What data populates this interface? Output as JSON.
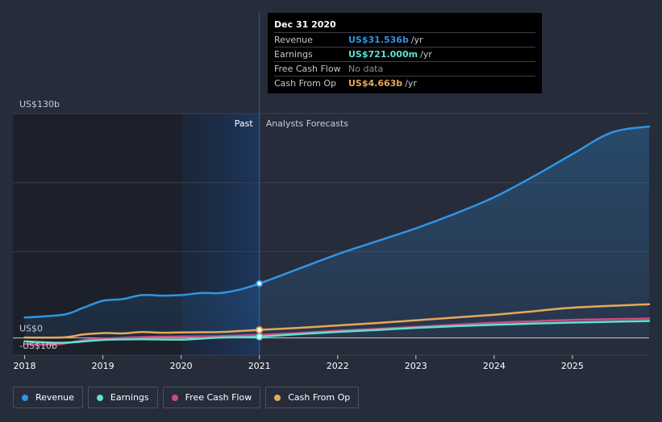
{
  "colors": {
    "revenue": "#2f95e6",
    "earnings": "#5ee1d3",
    "free_cash_flow": "#d2497e",
    "cash_from_op": "#e7a85a"
  },
  "tooltip": {
    "date": "Dec 31 2020",
    "rows": [
      {
        "label": "Revenue",
        "value": "US$31.536b",
        "unit": "/yr",
        "color": "#2f95e6"
      },
      {
        "label": "Earnings",
        "value": "US$721.000m",
        "unit": "/yr",
        "color": "#5ee1d3"
      },
      {
        "label": "Free Cash Flow",
        "value": "No data",
        "unit": "",
        "color": "#8a8d94"
      },
      {
        "label": "Cash From Op",
        "value": "US$4.663b",
        "unit": "/yr",
        "color": "#e7a85a"
      }
    ]
  },
  "legend": [
    {
      "label": "Revenue",
      "color": "#2f95e6"
    },
    {
      "label": "Earnings",
      "color": "#5ee1d3"
    },
    {
      "label": "Free Cash Flow",
      "color": "#d2497e"
    },
    {
      "label": "Cash From Op",
      "color": "#e7a85a"
    }
  ],
  "chart_data": {
    "type": "line",
    "title": "",
    "xlabel": "",
    "ylabel": "",
    "y_top_label": "US$130b",
    "y_zero_label": "US$0",
    "y_bottom_label": "-US$10b",
    "ylim": [
      -10,
      130
    ],
    "xlim": [
      2017.85,
      2025.98
    ],
    "x_ticks": [
      2018,
      2019,
      2020,
      2021,
      2022,
      2023,
      2024,
      2025
    ],
    "x_tick_labels": [
      "2018",
      "2019",
      "2020",
      "2021",
      "2022",
      "2023",
      "2024",
      "2025"
    ],
    "past_label": "Past",
    "forecast_label": "Analysts Forecasts",
    "divider_x": 2021.0,
    "shade_start_x": 2020.0,
    "series": [
      {
        "name": "Revenue",
        "color": "#2f95e6",
        "points": [
          [
            2018.0,
            11.8
          ],
          [
            2018.5,
            13.5
          ],
          [
            2018.75,
            17.5
          ],
          [
            2019.0,
            21.5
          ],
          [
            2019.25,
            22.5
          ],
          [
            2019.5,
            24.8
          ],
          [
            2019.75,
            24.5
          ],
          [
            2020.0,
            24.8
          ],
          [
            2020.25,
            26.0
          ],
          [
            2020.5,
            26.0
          ],
          [
            2020.75,
            28.0
          ],
          [
            2021.0,
            31.5
          ],
          [
            2021.5,
            40.0
          ],
          [
            2022.0,
            48.5
          ],
          [
            2022.5,
            56.0
          ],
          [
            2023.0,
            63.5
          ],
          [
            2023.5,
            72.0
          ],
          [
            2024.0,
            81.5
          ],
          [
            2024.5,
            93.5
          ],
          [
            2025.0,
            106.5
          ],
          [
            2025.5,
            119.0
          ],
          [
            2025.98,
            122.5
          ]
        ],
        "highlight": [
          2021.0,
          31.5
        ]
      },
      {
        "name": "Earnings",
        "color": "#5ee1d3",
        "points": [
          [
            2018.0,
            -2.0
          ],
          [
            2018.5,
            -2.8
          ],
          [
            2019.0,
            -1.2
          ],
          [
            2019.5,
            -0.8
          ],
          [
            2020.0,
            -1.0
          ],
          [
            2020.5,
            0.2
          ],
          [
            2021.0,
            0.7
          ],
          [
            2021.5,
            2.2
          ],
          [
            2022.0,
            3.5
          ],
          [
            2022.5,
            4.6
          ],
          [
            2023.0,
            5.8
          ],
          [
            2023.5,
            6.8
          ],
          [
            2024.0,
            7.6
          ],
          [
            2024.5,
            8.3
          ],
          [
            2025.0,
            8.9
          ],
          [
            2025.98,
            9.8
          ]
        ],
        "highlight": [
          2021.0,
          0.7
        ]
      },
      {
        "name": "Free Cash Flow",
        "color": "#d2497e",
        "points": [
          [
            2018.0,
            -3.5
          ],
          [
            2018.4,
            -3.8
          ],
          [
            2018.8,
            -1.0
          ],
          [
            2019.0,
            -0.5
          ],
          [
            2019.5,
            0.5
          ],
          [
            2020.0,
            0.8
          ],
          [
            2020.5,
            1.0
          ],
          [
            2021.0,
            1.8
          ],
          [
            2021.5,
            2.8
          ],
          [
            2022.0,
            4.2
          ],
          [
            2022.5,
            5.2
          ],
          [
            2023.0,
            6.4
          ],
          [
            2023.5,
            7.6
          ],
          [
            2024.0,
            8.8
          ],
          [
            2024.5,
            9.6
          ],
          [
            2025.0,
            10.4
          ],
          [
            2025.98,
            11.2
          ]
        ],
        "highlight": null
      },
      {
        "name": "Cash From Op",
        "color": "#e7a85a",
        "points": [
          [
            2018.0,
            0.2
          ],
          [
            2018.5,
            0.3
          ],
          [
            2018.75,
            2.0
          ],
          [
            2019.0,
            2.8
          ],
          [
            2019.25,
            2.6
          ],
          [
            2019.5,
            3.4
          ],
          [
            2019.75,
            3.0
          ],
          [
            2020.0,
            3.2
          ],
          [
            2020.5,
            3.4
          ],
          [
            2020.75,
            4.0
          ],
          [
            2021.0,
            4.663
          ],
          [
            2021.5,
            5.8
          ],
          [
            2022.0,
            7.2
          ],
          [
            2022.5,
            8.6
          ],
          [
            2023.0,
            10.2
          ],
          [
            2023.5,
            11.8
          ],
          [
            2024.0,
            13.4
          ],
          [
            2024.5,
            15.4
          ],
          [
            2025.0,
            17.5
          ],
          [
            2025.98,
            19.5
          ]
        ],
        "highlight": [
          2021.0,
          4.663
        ]
      }
    ]
  }
}
